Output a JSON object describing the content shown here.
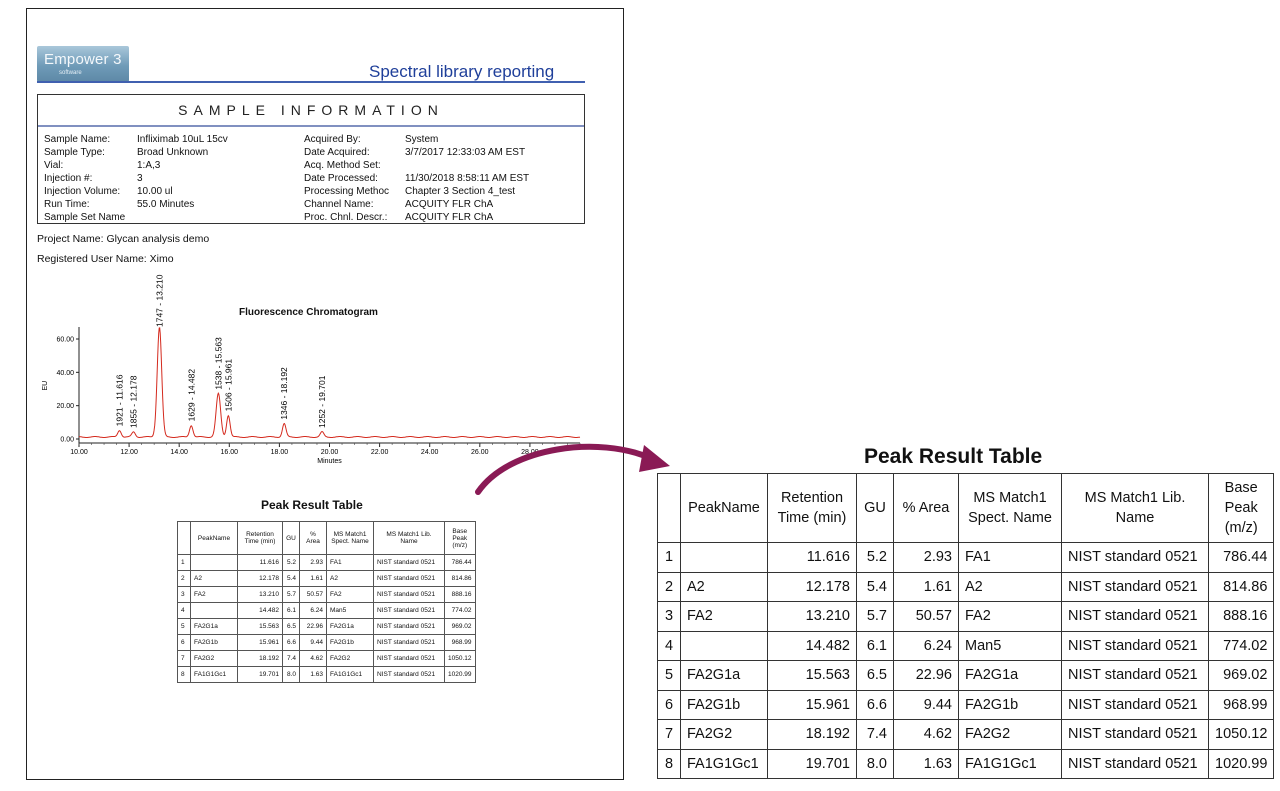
{
  "logo": {
    "name": "Empower 3",
    "sub": "software"
  },
  "report_title": "Spectral library reporting",
  "sample_info": {
    "heading": "SAMPLE INFORMATION",
    "left": [
      {
        "label": "Sample Name:",
        "value": "Infliximab 10uL 15cv"
      },
      {
        "label": "Sample Type:",
        "value": "Broad Unknown"
      },
      {
        "label": "Vial:",
        "value": "1:A,3"
      },
      {
        "label": "Injection #:",
        "value": "3"
      },
      {
        "label": "Injection Volume:",
        "value": "10.00 ul"
      },
      {
        "label": "Run Time:",
        "value": "55.0 Minutes"
      },
      {
        "label": "Sample Set Name",
        "value": ""
      }
    ],
    "right": [
      {
        "label": "Acquired By:",
        "value": "System"
      },
      {
        "label": "Date Acquired:",
        "value": "3/7/2017 12:33:03 AM EST"
      },
      {
        "label": "Acq. Method Set:",
        "value": ""
      },
      {
        "label": "Date Processed:",
        "value": "11/30/2018 8:58:11 AM EST"
      },
      {
        "label": "Processing Methoc",
        "value": "Chapter 3 Section 4_test"
      },
      {
        "label": "Channel Name:",
        "value": "ACQUITY FLR ChA"
      },
      {
        "label": "Proc. Chnl. Descr.:",
        "value": "ACQUITY FLR ChA"
      }
    ]
  },
  "project_name": "Project Name: Glycan analysis demo",
  "registered_user": "Registered User Name: Ximo",
  "chart_data": {
    "type": "line",
    "title": "Fluorescence Chromatogram",
    "xlabel": "Minutes",
    "ylabel": "EU",
    "xlim": [
      10.0,
      30.0
    ],
    "ylim": [
      0,
      65
    ],
    "x_ticks": [
      "10.00",
      "12.00",
      "14.00",
      "16.00",
      "18.00",
      "20.00",
      "22.00",
      "24.00",
      "26.00",
      "28.00"
    ],
    "y_ticks": [
      "0.00",
      "20.00",
      "40.00",
      "60.00"
    ],
    "peaks": [
      {
        "x": 11.616,
        "y": 4,
        "label": "1921 - 11.616"
      },
      {
        "x": 12.178,
        "y": 3,
        "label": "1855 - 12.178"
      },
      {
        "x": 13.21,
        "y": 66,
        "label": "1747 - 13.210"
      },
      {
        "x": 14.482,
        "y": 7,
        "label": "1629 - 14.482"
      },
      {
        "x": 15.563,
        "y": 26,
        "label": "1538 - 15.563"
      },
      {
        "x": 15.961,
        "y": 13,
        "label": "1506 - 15.961"
      },
      {
        "x": 18.192,
        "y": 8,
        "label": "1346 - 18.192"
      },
      {
        "x": 19.701,
        "y": 3,
        "label": "1252 - 19.701"
      }
    ],
    "line_color": "#d42a1e"
  },
  "peak_table": {
    "title": "Peak Result Table",
    "headers": [
      "",
      "PeakName",
      "Retention Time (min)",
      "GU",
      "% Area",
      "MS Match1 Spect. Name",
      "MS Match1 Lib. Name",
      "Base Peak (m/z)"
    ],
    "rows": [
      [
        "1",
        "",
        "11.616",
        "5.2",
        "2.93",
        "FA1",
        "NIST standard 0521",
        "786.44"
      ],
      [
        "2",
        "A2",
        "12.178",
        "5.4",
        "1.61",
        "A2",
        "NIST standard 0521",
        "814.86"
      ],
      [
        "3",
        "FA2",
        "13.210",
        "5.7",
        "50.57",
        "FA2",
        "NIST standard 0521",
        "888.16"
      ],
      [
        "4",
        "",
        "14.482",
        "6.1",
        "6.24",
        "Man5",
        "NIST standard 0521",
        "774.02"
      ],
      [
        "5",
        "FA2G1a",
        "15.563",
        "6.5",
        "22.96",
        "FA2G1a",
        "NIST standard 0521",
        "969.02"
      ],
      [
        "6",
        "FA2G1b",
        "15.961",
        "6.6",
        "9.44",
        "FA2G1b",
        "NIST standard 0521",
        "968.99"
      ],
      [
        "7",
        "FA2G2",
        "18.192",
        "7.4",
        "4.62",
        "FA2G2",
        "NIST standard 0521",
        "1050.12"
      ],
      [
        "8",
        "FA1G1Gc1",
        "19.701",
        "8.0",
        "1.63",
        "FA1G1Gc1",
        "NIST standard 0521",
        "1020.99"
      ]
    ]
  },
  "arrow_color": "#8a1a55"
}
